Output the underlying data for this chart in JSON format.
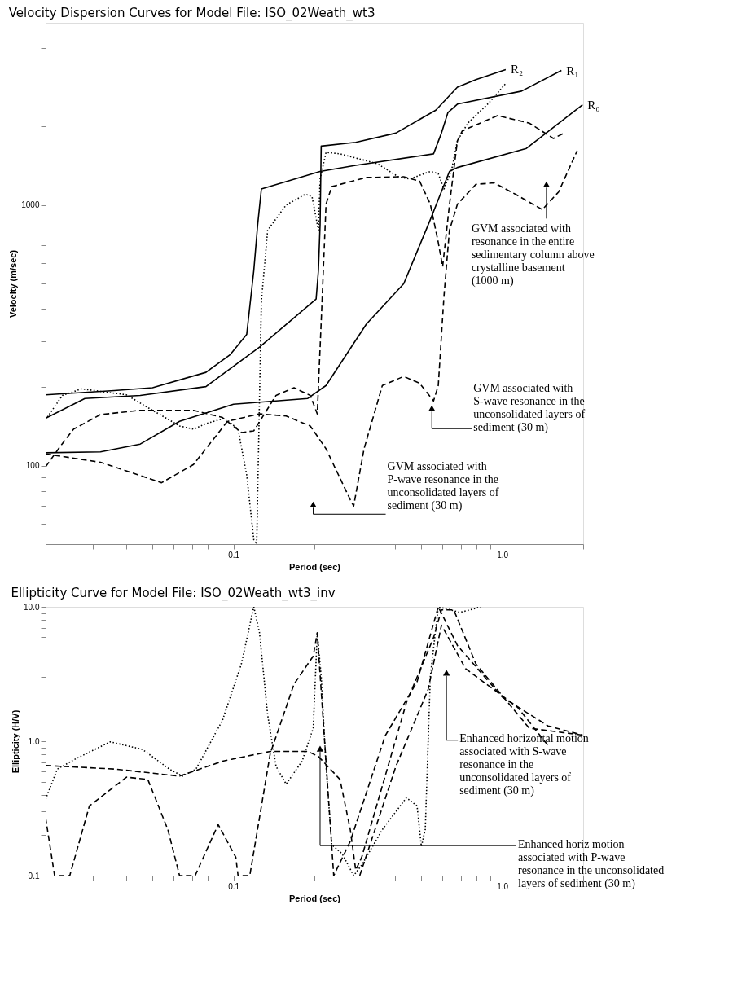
{
  "chart_data": [
    {
      "type": "line",
      "title": "Velocity Dispersion Curves for Model File: ISO_02Weath_wt3",
      "xlabel": "Period (sec)",
      "ylabel": "Velocity (m/sec)",
      "log": "xy",
      "grid": false,
      "legend": false,
      "xlim": [
        0.02,
        2
      ],
      "ylim": [
        50,
        5000
      ],
      "xticks": [
        {
          "value": 0.02,
          "label": null
        },
        {
          "value": 0.03,
          "label": null
        },
        {
          "value": 0.04,
          "label": null
        },
        {
          "value": 0.05,
          "label": null
        },
        {
          "value": 0.06,
          "label": null
        },
        {
          "value": 0.07,
          "label": null
        },
        {
          "value": 0.08,
          "label": null
        },
        {
          "value": 0.09,
          "label": null
        },
        0.1,
        {
          "value": 0.2,
          "label": null
        },
        {
          "value": 0.3,
          "label": null
        },
        {
          "value": 0.4,
          "label": null
        },
        {
          "value": 0.5,
          "label": null
        },
        {
          "value": 0.6,
          "label": null
        },
        {
          "value": 0.7,
          "label": null
        },
        {
          "value": 0.8,
          "label": null
        },
        {
          "value": 0.9,
          "label": null
        },
        {
          "value": 1,
          "label": "1.0"
        },
        {
          "value": 2,
          "label": null
        }
      ],
      "yticks": [
        {
          "value": 60,
          "label": null
        },
        {
          "value": 70,
          "label": null
        },
        {
          "value": 80,
          "label": null
        },
        {
          "value": 90,
          "label": null
        },
        100,
        {
          "value": 200,
          "label": null
        },
        {
          "value": 300,
          "label": null
        },
        {
          "value": 400,
          "label": null
        },
        {
          "value": 500,
          "label": null
        },
        {
          "value": 600,
          "label": null
        },
        {
          "value": 700,
          "label": null
        },
        {
          "value": 800,
          "label": null
        },
        {
          "value": 900,
          "label": null
        },
        1000,
        {
          "value": 2000,
          "label": null
        },
        {
          "value": 3000,
          "label": null
        },
        {
          "value": 4000,
          "label": null
        }
      ],
      "series": [
        {
          "name": "R₀",
          "color": "#000000",
          "line_style": "solid",
          "x": [
            0.02,
            0.032,
            0.045,
            0.063,
            0.1,
            0.189,
            0.221,
            0.312,
            0.43,
            0.54,
            0.636,
            0.681,
            1.23,
            1.99
          ],
          "values": [
            112,
            113,
            121,
            148,
            172,
            181,
            203,
            349,
            499,
            879,
            1345,
            1393,
            1649,
            2422
          ]
        },
        {
          "name": "R₁",
          "color": "#000000",
          "line_style": "solid",
          "x": [
            0.02,
            0.036,
            0.05,
            0.079,
            0.097,
            0.112,
            0.119,
            0.123,
            0.127,
            0.21,
            0.285,
            0.555,
            0.594,
            0.628,
            0.681,
            1.18,
            1.66
          ],
          "values": [
            187,
            194,
            199,
            228,
            266,
            319,
            560,
            839,
            1152,
            1345,
            1420,
            1571,
            1888,
            2265,
            2438,
            2735,
            3282
          ]
        },
        {
          "name": "R₂",
          "color": "#000000",
          "line_style": "solid",
          "x": [
            0.02,
            0.028,
            0.045,
            0.079,
            0.125,
            0.203,
            0.207,
            0.21,
            0.212,
            0.285,
            0.402,
            0.566,
            0.681,
            0.798,
            1.03
          ],
          "values": [
            152,
            181,
            186,
            201,
            285,
            436,
            560,
            839,
            1682,
            1740,
            1888,
            2312,
            2831,
            3027,
            3306
          ]
        },
        {
          "color": "#000000",
          "line_style": "dotted",
          "x": [
            0.02,
            0.0231,
            0.0272,
            0.0399,
            0.05,
            0.063,
            0.071,
            0.079,
            0.093,
            0.104,
            0.112,
            0.119,
            0.122,
            0.127,
            0.134,
            0.157,
            0.185,
            0.196,
            0.207,
            0.21,
            0.221,
            0.249,
            0.343,
            0.41,
            0.452,
            0.54,
            0.578,
            0.607,
            0.649,
            0.681,
            0.745,
            0.895,
            1.03
          ],
          "values": [
            150,
            186,
            197,
            187,
            163,
            142,
            138,
            145,
            152,
            138,
            92,
            52,
            50,
            427,
            800,
            1000,
            1099,
            1077,
            800,
            1258,
            1593,
            1571,
            1440,
            1284,
            1258,
            1345,
            1319,
            1152,
            1373,
            1764,
            2062,
            2473,
            2925
          ]
        },
        {
          "color": "#000000",
          "line_style": "dashed",
          "x": [
            0.02,
            0.0226,
            0.0254,
            0.032,
            0.045,
            0.071,
            0.091,
            0.107,
            0.119,
            0.144,
            0.168,
            0.193,
            0.205,
            0.212,
            0.221,
            0.232,
            0.312,
            0.43,
            0.493,
            0.54,
            0.578,
            0.6,
            0.636,
            0.681,
            0.71,
            0.96,
            1.26,
            1.55,
            1.7
          ],
          "values": [
            99,
            118,
            138,
            157,
            163,
            163,
            153,
            134,
            136,
            186,
            199,
            186,
            158,
            356,
            1007,
            1176,
            1275,
            1284,
            1233,
            1007,
            718,
            580,
            1000,
            1764,
            1925,
            2203,
            2062,
            1800,
            1888
          ]
        },
        {
          "color": "#000000",
          "line_style": "dashed",
          "x": [
            0.02,
            0.032,
            0.054,
            0.071,
            0.095,
            0.125,
            0.157,
            0.193,
            0.221,
            0.272,
            0.28,
            0.306,
            0.358,
            0.43,
            0.493,
            0.555,
            0.578,
            0.607,
            0.636,
            0.681,
            0.798,
            0.934,
            1.12,
            1.41,
            1.62,
            1.9
          ],
          "values": [
            111,
            103,
            86,
            101,
            148,
            158,
            155,
            142,
            116,
            74,
            70,
            116,
            203,
            220,
            207,
            177,
            203,
            448,
            800,
            1007,
            1200,
            1216,
            1099,
            960,
            1122,
            1616
          ]
        }
      ],
      "annotations": [
        {
          "text": "GVM associated with resonance in the entire sedimentary column above crystalline basement (1000 m)",
          "x": 1.46,
          "y": 1200
        },
        {
          "text": "GVM associated with S-wave resonance in the unconsolidated layers of sediment (30 m)",
          "x": 0.547,
          "y": 166
        },
        {
          "text": "GVM associated with P-wave resonance in the unconsolidated layers of sediment (30 m)",
          "x": 0.198,
          "y": 71
        }
      ]
    },
    {
      "type": "line",
      "title": "Ellipticity Curve for Model File: ISO_02Weath_wt3_inv",
      "xlabel": "Period (sec)",
      "ylabel": "Ellipticity (H/V)",
      "log": "xy",
      "grid": false,
      "legend": false,
      "xlim": [
        0.02,
        2
      ],
      "ylim": [
        0.1,
        10
      ],
      "xticks": [
        {
          "value": 0.02,
          "label": null
        },
        {
          "value": 0.03,
          "label": null
        },
        {
          "value": 0.04,
          "label": null
        },
        {
          "value": 0.05,
          "label": null
        },
        {
          "value": 0.06,
          "label": null
        },
        {
          "value": 0.07,
          "label": null
        },
        {
          "value": 0.08,
          "label": null
        },
        {
          "value": 0.09,
          "label": null
        },
        0.1,
        {
          "value": 0.2,
          "label": null
        },
        {
          "value": 0.3,
          "label": null
        },
        {
          "value": 0.4,
          "label": null
        },
        {
          "value": 0.5,
          "label": null
        },
        {
          "value": 0.6,
          "label": null
        },
        {
          "value": 0.7,
          "label": null
        },
        {
          "value": 0.8,
          "label": null
        },
        {
          "value": 0.9,
          "label": null
        },
        {
          "value": 1,
          "label": "1.0"
        },
        {
          "value": 2,
          "label": null
        }
      ],
      "yticks": [
        0.1,
        {
          "value": 0.2,
          "label": null
        },
        {
          "value": 0.3,
          "label": null
        },
        {
          "value": 0.4,
          "label": null
        },
        {
          "value": 0.5,
          "label": null
        },
        {
          "value": 0.6,
          "label": null
        },
        {
          "value": 0.7,
          "label": null
        },
        {
          "value": 0.8,
          "label": null
        },
        {
          "value": 0.9,
          "label": null
        },
        {
          "value": 1,
          "label": "1.0"
        },
        {
          "value": 2,
          "label": null
        },
        {
          "value": 3,
          "label": null
        },
        {
          "value": 4,
          "label": null
        },
        {
          "value": 5,
          "label": null
        },
        {
          "value": 6,
          "label": null
        },
        {
          "value": 7,
          "label": null
        },
        {
          "value": 8,
          "label": null
        },
        {
          "value": 9,
          "label": null
        },
        {
          "value": 10,
          "label": "10.0"
        }
      ],
      "series": [
        {
          "color": "#000000",
          "line_style": "dotted",
          "x": [
            0.02,
            0.0221,
            0.0259,
            0.0348,
            0.0458,
            0.0578,
            0.0646,
            0.0725,
            0.091,
            0.107,
            0.119,
            0.125,
            0.134,
            0.144,
            0.157,
            0.18,
            0.198,
            0.205,
            0.212,
            0.221,
            0.232,
            0.254,
            0.28,
            0.3,
            0.358,
            0.44,
            0.482,
            0.5,
            0.517,
            0.54,
            0.578,
            0.696,
            0.76,
            0.83
          ],
          "values": [
            0.37,
            0.62,
            0.74,
            0.99,
            0.87,
            0.62,
            0.55,
            0.62,
            1.43,
            3.76,
            10,
            6.4,
            1.57,
            0.65,
            0.48,
            0.71,
            1.25,
            6.4,
            3.04,
            0.65,
            0.17,
            0.145,
            0.1,
            0.12,
            0.22,
            0.38,
            0.33,
            0.165,
            0.22,
            3.04,
            10,
            9.1,
            9.5,
            10
          ]
        },
        {
          "color": "#000000",
          "line_style": "dashed",
          "x": [
            0.02,
            0.0216,
            0.0246,
            0.0291,
            0.04,
            0.048,
            0.057,
            0.063,
            0.072,
            0.0877,
            0.102,
            0.104,
            0.115,
            0.137,
            0.168,
            0.198,
            0.205,
            0.236,
            0.272,
            0.367,
            0.482,
            0.578,
            0.681,
            1.0,
            1.48,
            1.99
          ],
          "values": [
            0.27,
            0.1,
            0.1,
            0.33,
            0.54,
            0.52,
            0.22,
            0.1,
            0.1,
            0.24,
            0.137,
            0.1,
            0.1,
            0.81,
            2.66,
            4.3,
            6.4,
            0.1,
            0.18,
            1.1,
            2.77,
            10,
            5.16,
            2.13,
            1.3,
            1.11
          ]
        },
        {
          "color": "#000000",
          "line_style": "dashed",
          "x": [
            0.295,
            0.402,
            0.53,
            0.594,
            0.73,
            1.14,
            1.48
          ],
          "values": [
            0.1,
            0.65,
            2.43,
            7.3,
            3.47,
            1.79,
            0.93
          ]
        },
        {
          "color": "#000000",
          "line_style": "dashed",
          "x": [
            0.02,
            0.0365,
            0.063,
            0.091,
            0.137,
            0.189,
            0.207,
            0.249,
            0.272,
            0.285,
            0.3,
            0.44,
            0.555,
            0.594,
            0.66,
            0.798,
            1.26,
            1.99
          ],
          "values": [
            0.66,
            0.62,
            0.55,
            0.71,
            0.84,
            0.84,
            0.77,
            0.52,
            0.22,
            0.11,
            0.137,
            1.94,
            5.89,
            9.5,
            9.5,
            3.76,
            1.25,
            1.11
          ]
        }
      ],
      "annotations": [
        {
          "text": "Enhanced horizontal motion associated with S-wave resonance in the unconsolidated layers of sediment (30 m)",
          "x": 0.62,
          "y": 3.24
        },
        {
          "text": "Enhanced horiz motion associated with P-wave resonance in the unconsolidated layers of sediment (30 m)",
          "x": 0.21,
          "y": 0.88
        }
      ]
    }
  ]
}
